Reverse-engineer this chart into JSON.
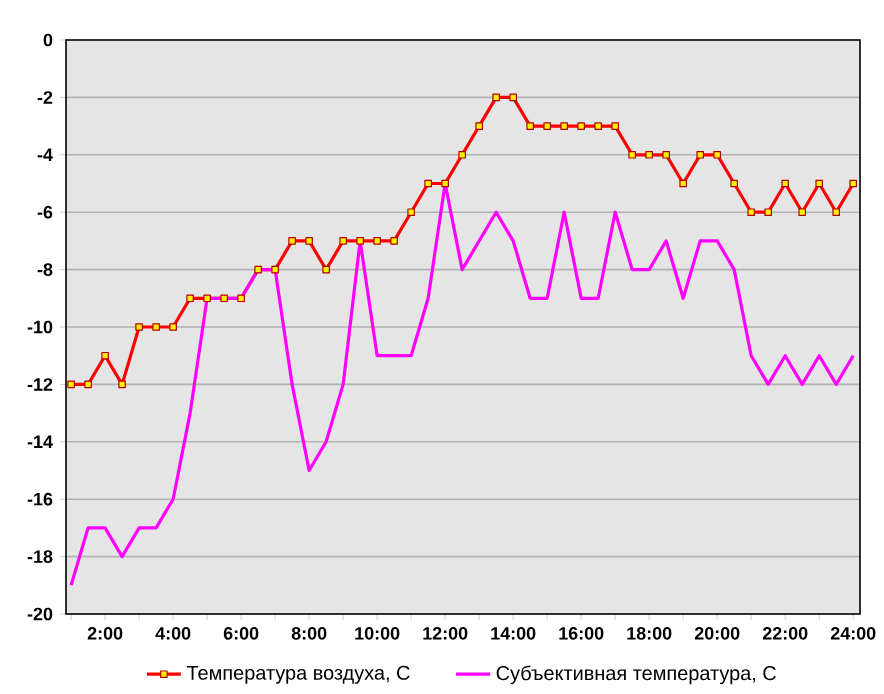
{
  "chart_data": {
    "type": "line",
    "x": [
      1,
      1.5,
      2,
      2.5,
      3,
      3.5,
      4,
      4.5,
      5,
      5.5,
      6,
      6.5,
      7,
      7.5,
      8,
      8.5,
      9,
      9.5,
      10,
      10.5,
      11,
      11.5,
      12,
      12.5,
      13,
      13.5,
      14,
      14.5,
      15,
      15.5,
      16,
      16.5,
      17,
      17.5,
      18,
      18.5,
      19,
      19.5,
      20,
      20.5,
      21,
      21.5,
      22,
      22.5,
      23,
      23.5,
      24
    ],
    "series": [
      {
        "name": "Температура воздуха, C",
        "color": "#ff0000",
        "marker": "square",
        "values": [
          -12,
          -12,
          -11,
          -12,
          -10,
          -10,
          -10,
          -9,
          -9,
          -9,
          -9,
          -8,
          -8,
          -7,
          -7,
          -8,
          -7,
          -7,
          -7,
          -7,
          -6,
          -5,
          -5,
          -4,
          -3,
          -2,
          -2,
          -3,
          -3,
          -3,
          -3,
          -3,
          -3,
          -4,
          -4,
          -4,
          -5,
          -4,
          -4,
          -5,
          -6,
          -6,
          -5,
          -6,
          -5,
          -6,
          -5
        ]
      },
      {
        "name": "Субъективная температура, C",
        "color": "#ff00ff",
        "marker": "none",
        "values": [
          -19,
          -17,
          -17,
          -18,
          -17,
          -17,
          -16,
          -13,
          -9,
          -9,
          -9,
          -8,
          -8,
          -12,
          -15,
          -14,
          -12,
          -7,
          -11,
          -11,
          -11,
          -9,
          -5,
          -8,
          -7,
          -6,
          -7,
          -9,
          -9,
          -6,
          -9,
          -9,
          -6,
          -8,
          -8,
          -7,
          -9,
          -7,
          -7,
          -8,
          -11,
          -12,
          -11,
          -12,
          -11,
          -12,
          -11
        ]
      }
    ],
    "xlim": [
      0.85,
      24.2
    ],
    "xticks": [
      {
        "value": 1,
        "label": null
      },
      {
        "value": 2,
        "label": "2:00"
      },
      {
        "value": 3,
        "label": null
      },
      {
        "value": 4,
        "label": "4:00"
      },
      {
        "value": 5,
        "label": null
      },
      {
        "value": 6,
        "label": "6:00"
      },
      {
        "value": 7,
        "label": null
      },
      {
        "value": 8,
        "label": "8:00"
      },
      {
        "value": 9,
        "label": null
      },
      {
        "value": 10,
        "label": "10:00"
      },
      {
        "value": 11,
        "label": null
      },
      {
        "value": 12,
        "label": "12:00"
      },
      {
        "value": 13,
        "label": null
      },
      {
        "value": 14,
        "label": "14:00"
      },
      {
        "value": 15,
        "label": null
      },
      {
        "value": 16,
        "label": "16:00"
      },
      {
        "value": 17,
        "label": null
      },
      {
        "value": 18,
        "label": "18:00"
      },
      {
        "value": 19,
        "label": null
      },
      {
        "value": 20,
        "label": "20:00"
      },
      {
        "value": 21,
        "label": null
      },
      {
        "value": 22,
        "label": "22:00"
      },
      {
        "value": 23,
        "label": null
      },
      {
        "value": 24,
        "label": "24:00"
      }
    ],
    "ylim": [
      -20,
      0
    ],
    "yticks": [
      -20,
      -18,
      -16,
      -14,
      -12,
      -10,
      -8,
      -6,
      -4,
      -2,
      0
    ],
    "grid": "y",
    "legend": "bottom",
    "line_style": "solid"
  }
}
